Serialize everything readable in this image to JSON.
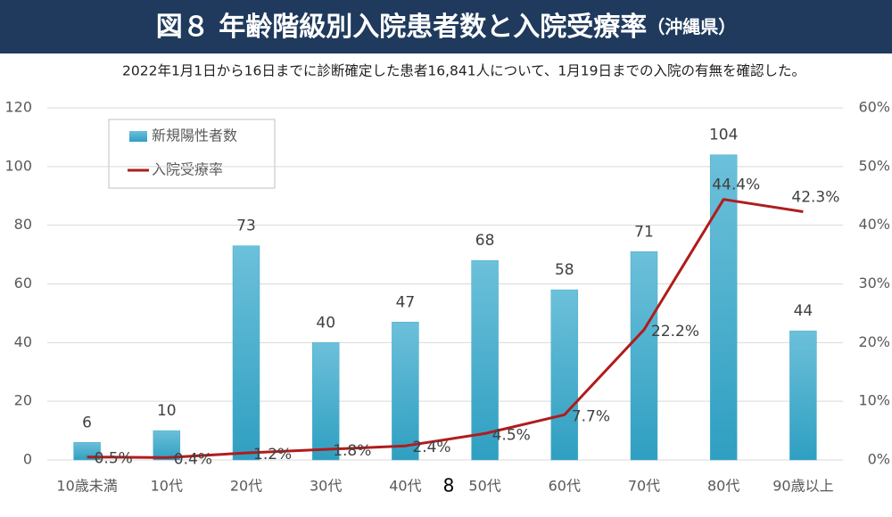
{
  "chart_data": {
    "type": "bar-line",
    "title": "図８ 年齢階級別入院患者数と入院受療率",
    "title_suffix": "（沖縄県）",
    "subtitle": "2022年1月1日から16日までに診断確定した患者16,841人について、1月19日までの入院の有無を確認した。",
    "page_number": "8",
    "categories": [
      "10歳未満",
      "10代",
      "20代",
      "30代",
      "40代",
      "50代",
      "60代",
      "70代",
      "80代",
      "90歳以上"
    ],
    "series": [
      {
        "name": "新規陽性者数",
        "type": "bar",
        "color": "#4aaecc",
        "axis": "y",
        "values": [
          6,
          10,
          73,
          40,
          47,
          68,
          58,
          71,
          104,
          44
        ]
      },
      {
        "name": "入院受療率",
        "type": "line",
        "color": "#b01c1c",
        "axis": "y2",
        "values": [
          0.5,
          0.4,
          1.2,
          1.8,
          2.4,
          4.5,
          7.7,
          22.2,
          44.4,
          42.3
        ],
        "value_labels": [
          "0.5%",
          "0.4%",
          "1.2%",
          "1.8%",
          "2.4%",
          "4.5%",
          "7.7%",
          "22.2%",
          "44.4%",
          "42.3%"
        ]
      }
    ],
    "ylim": [
      0,
      120
    ],
    "yticks": [
      0,
      20,
      40,
      60,
      80,
      100,
      120
    ],
    "y2lim": [
      0,
      60
    ],
    "y2ticks": [
      {
        "value": 0,
        "label": "0%"
      },
      {
        "value": 10,
        "label": "10%"
      },
      {
        "value": 20,
        "label": "20%"
      },
      {
        "value": 30,
        "label": "30%"
      },
      {
        "value": 40,
        "label": "40%"
      },
      {
        "value": 50,
        "label": "50%"
      },
      {
        "value": 60,
        "label": "60%"
      }
    ],
    "grid": true,
    "legend": "top-left"
  }
}
